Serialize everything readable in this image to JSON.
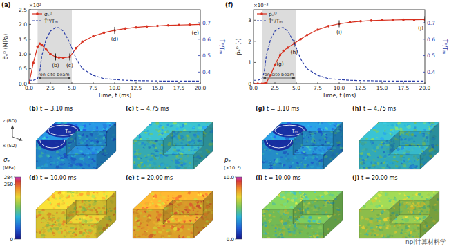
{
  "chart_data": [
    {
      "type": "line",
      "title": "(a)",
      "y_label": "σ̄ₑᴰ (MPa)",
      "y_multiplier": "×10²",
      "y2_label": "T̄ᴰ/Tₘ",
      "x_label": "Time, t (ms)",
      "x": [
        0,
        0.5,
        1,
        1.25,
        1.5,
        2,
        2.5,
        3.1,
        3.5,
        4,
        4.75,
        5.5,
        6.25,
        7.5,
        8.75,
        10,
        11.25,
        12.5,
        13.75,
        15,
        16.25,
        17.5,
        18.75,
        20
      ],
      "series": [
        {
          "name": "σ̄ₑᴰ",
          "color": "#d7301f",
          "marker": "circle",
          "line_style": "solid",
          "values": [
            0,
            0.7,
            1.25,
            1.35,
            1.3,
            1.15,
            1.0,
            0.9,
            0.88,
            0.87,
            0.9,
            1.2,
            1.42,
            1.6,
            1.72,
            1.8,
            1.86,
            1.9,
            1.93,
            1.95,
            1.97,
            1.98,
            1.99,
            2.0
          ]
        },
        {
          "name": "T̄ᴰ/Tₘ",
          "color": "#2b3ea8",
          "marker": "none",
          "line_style": "dashed",
          "axis": "y2",
          "values": [
            0.35,
            0.35,
            0.36,
            0.4,
            0.5,
            0.6,
            0.65,
            0.67,
            0.67,
            0.65,
            0.58,
            0.48,
            0.42,
            0.38,
            0.36,
            0.355,
            0.35,
            0.348,
            0.347,
            0.346,
            0.345,
            0.345,
            0.345,
            0.345
          ]
        }
      ],
      "xlim": [
        0,
        20
      ],
      "xticks": [
        {
          "value": 0,
          "label": "0.0"
        },
        2.5,
        {
          "value": 5,
          "label": "5.0"
        },
        7.5,
        {
          "value": 10,
          "label": "10.0"
        },
        12.5,
        {
          "value": 15,
          "label": "15.0"
        },
        17.5,
        {
          "value": 20,
          "label": "20.0"
        }
      ],
      "ylim": [
        0,
        2.5
      ],
      "yticks": [
        {
          "value": 0,
          "label": "0.0"
        },
        0.5,
        {
          "value": 1,
          "label": "1.0"
        },
        1.5,
        {
          "value": 2,
          "label": "2.0"
        },
        2.5
      ],
      "y2lim": [
        0.33,
        0.78
      ],
      "y2ticks": [
        0.4,
        0.5,
        0.6,
        0.7
      ],
      "legend": "upper left",
      "grid": false,
      "shaded_region": {
        "x": [
          1,
          5
        ],
        "label": "on-site beam"
      },
      "annotations": [
        {
          "label": "(b)",
          "x": 3.1,
          "y": 0.9
        },
        {
          "label": "(c)",
          "x": 4.75,
          "y": 0.9
        },
        {
          "label": "(d)",
          "x": 10,
          "y": 1.8
        },
        {
          "label": "(e)",
          "x": 20,
          "y": 2.0
        }
      ]
    },
    {
      "type": "line",
      "title": "(f)",
      "y_label": "p̄ₑᴰ (-)",
      "y_multiplier": "×10⁻³",
      "y2_label": "T̄ᴰ/Tₘ",
      "x_label": "Time, t (ms)",
      "x": [
        0,
        0.5,
        1,
        1.25,
        1.5,
        2,
        2.5,
        3.1,
        3.5,
        4,
        4.75,
        5.5,
        6.25,
        7.5,
        8.75,
        10,
        11.25,
        12.5,
        13.75,
        15,
        16.25,
        17.5,
        18.75,
        20
      ],
      "series": [
        {
          "name": "p̄ₑᴰ",
          "color": "#d7301f",
          "marker": "circle",
          "line_style": "solid",
          "values": [
            0,
            0,
            0,
            0,
            0.05,
            0.4,
            0.9,
            1.35,
            1.55,
            1.7,
            1.9,
            2.1,
            2.3,
            2.55,
            2.72,
            2.83,
            2.9,
            2.95,
            2.98,
            3.0,
            3.01,
            3.02,
            3.02,
            3.03
          ]
        },
        {
          "name": "T̄ᴰ/Tₘ",
          "color": "#2b3ea8",
          "marker": "none",
          "line_style": "dashed",
          "axis": "y2",
          "values": [
            0.35,
            0.35,
            0.36,
            0.4,
            0.5,
            0.6,
            0.65,
            0.67,
            0.67,
            0.65,
            0.58,
            0.48,
            0.42,
            0.38,
            0.36,
            0.355,
            0.35,
            0.348,
            0.347,
            0.346,
            0.345,
            0.345,
            0.345,
            0.345
          ]
        }
      ],
      "xlim": [
        0,
        20
      ],
      "xticks": [
        {
          "value": 0,
          "label": "0.0"
        },
        2.5,
        {
          "value": 5,
          "label": "5.0"
        },
        7.5,
        {
          "value": 10,
          "label": "10.0"
        },
        12.5,
        {
          "value": 15,
          "label": "15.0"
        },
        17.5,
        {
          "value": 20,
          "label": "20.0"
        }
      ],
      "ylim": [
        0,
        3.5
      ],
      "yticks": [
        0,
        1,
        2,
        3
      ],
      "y2lim": [
        0.33,
        0.78
      ],
      "y2ticks": [
        0.4,
        0.5,
        0.6,
        0.7
      ],
      "legend": "upper left",
      "grid": false,
      "shaded_region": {
        "x": [
          1,
          5
        ],
        "label": "on-site beam"
      },
      "annotations": [
        {
          "label": "(g)",
          "x": 3.1,
          "y": 1.35
        },
        {
          "label": "(h)",
          "x": 4.75,
          "y": 1.9
        },
        {
          "label": "(i)",
          "x": 10,
          "y": 2.83
        },
        {
          "label": "(j)",
          "x": 20,
          "y": 3.03
        }
      ]
    }
  ],
  "snapshot_panels": [
    {
      "colorbar": {
        "title": "σₑ",
        "unit": "(MPa)",
        "lim": [
          0,
          284
        ],
        "ticks": [
          0,
          250,
          284
        ]
      },
      "snapshots": [
        {
          "label": "(b)",
          "time": "t = 3.10 ms",
          "level": 80,
          "annotation": "Tₘ"
        },
        {
          "label": "(c)",
          "time": "t = 4.75 ms",
          "level": 110
        },
        {
          "label": "(d)",
          "time": "t = 10.00 ms",
          "level": 195
        },
        {
          "label": "(e)",
          "time": "t = 20.00 ms",
          "level": 215
        }
      ]
    },
    {
      "colorbar": {
        "title": "pₑ",
        "unit": "(×10⁻³)",
        "lim": [
          0,
          10
        ],
        "ticks": [
          {
            "value": 0,
            "label": "0.0"
          },
          {
            "value": 10,
            "label": "10.0"
          }
        ]
      },
      "snapshots": [
        {
          "label": "(g)",
          "time": "t = 3.10 ms",
          "level": 3.0,
          "annotation": "Tₘ"
        },
        {
          "label": "(h)",
          "time": "t = 4.75 ms",
          "level": 3.8
        },
        {
          "label": "(i)",
          "time": "t = 10.00 ms",
          "level": 5.2
        },
        {
          "label": "(j)",
          "time": "t = 20.00 ms",
          "level": 5.6
        }
      ]
    }
  ],
  "axes_triad": {
    "z": "z (BD)",
    "x": "x (SD)"
  },
  "watermark": "npj计算材料学"
}
